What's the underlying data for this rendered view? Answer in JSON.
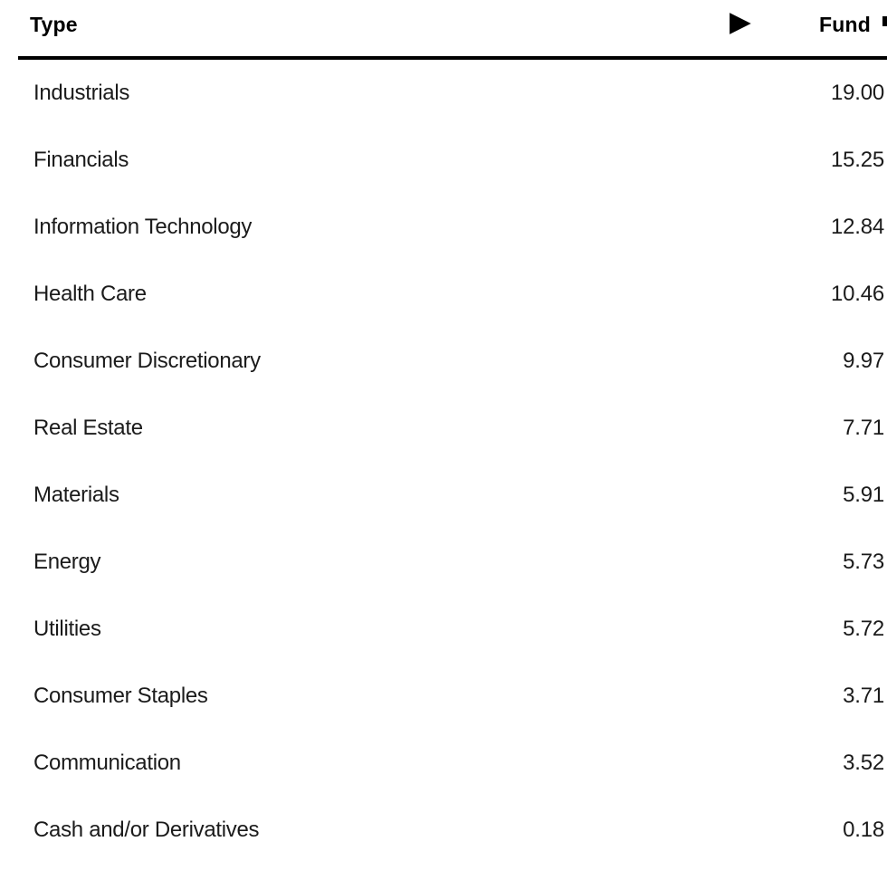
{
  "table": {
    "header": {
      "type_label": "Type",
      "fund_label": "Fund"
    },
    "icons": {
      "scroll_right": "▶"
    },
    "rows": [
      {
        "label": "Industrials",
        "value": "19.00"
      },
      {
        "label": "Financials",
        "value": "15.25"
      },
      {
        "label": "Information Technology",
        "value": "12.84"
      },
      {
        "label": "Health Care",
        "value": "10.46"
      },
      {
        "label": "Consumer Discretionary",
        "value": "9.97"
      },
      {
        "label": "Real Estate",
        "value": "7.71"
      },
      {
        "label": "Materials",
        "value": "5.91"
      },
      {
        "label": "Energy",
        "value": "5.73"
      },
      {
        "label": "Utilities",
        "value": "5.72"
      },
      {
        "label": "Consumer Staples",
        "value": "3.71"
      },
      {
        "label": "Communication",
        "value": "3.52"
      },
      {
        "label": "Cash and/or Derivatives",
        "value": "0.18"
      }
    ],
    "colors": {
      "background": "#ffffff",
      "body_text": "#1b1b1b",
      "header_text": "#000000",
      "rule": "#000000"
    }
  }
}
